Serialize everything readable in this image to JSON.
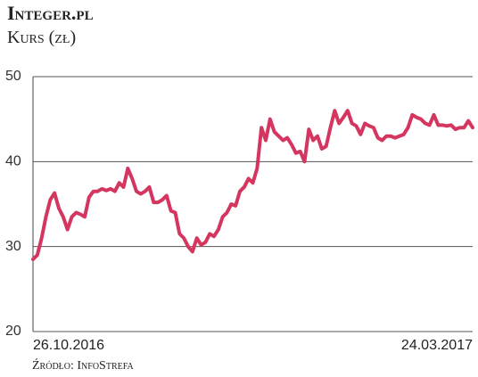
{
  "chart_data": {
    "type": "line",
    "title": "Integer.pl",
    "subtitle": "Kurs (zł)",
    "source": "Źródło: InfoStrefa",
    "categories": [
      "26.10.2016",
      null,
      null,
      null,
      null,
      null,
      null,
      null,
      null,
      null,
      null,
      null,
      null,
      null,
      null,
      null,
      null,
      null,
      null,
      null,
      null,
      null,
      null,
      null,
      null,
      null,
      null,
      null,
      null,
      null,
      null,
      null,
      null,
      null,
      null,
      null,
      null,
      null,
      null,
      null,
      null,
      null,
      null,
      null,
      null,
      null,
      null,
      null,
      null,
      null,
      null,
      null,
      null,
      null,
      null,
      null,
      null,
      null,
      null,
      null,
      null,
      null,
      null,
      null,
      null,
      null,
      null,
      null,
      null,
      null,
      null,
      null,
      null,
      null,
      null,
      null,
      null,
      null,
      null,
      null,
      null,
      null,
      null,
      null,
      null,
      null,
      null,
      null,
      null,
      null,
      null,
      null,
      null,
      null,
      null,
      null,
      null,
      null,
      null,
      null,
      null,
      null,
      "24.03.2017"
    ],
    "values": [
      28.5,
      29,
      31,
      33.5,
      35.5,
      36.3,
      34.5,
      33.5,
      32,
      33.5,
      34,
      33.8,
      33.5,
      35.8,
      36.5,
      36.5,
      36.8,
      36.6,
      36.8,
      36.5,
      37.5,
      37,
      39.2,
      38,
      36.5,
      36.2,
      36.5,
      37,
      35.2,
      35.2,
      35.5,
      36,
      34.2,
      34,
      31.5,
      31,
      30,
      29.4,
      31,
      30.2,
      30.5,
      31.5,
      31.2,
      32,
      33.5,
      34,
      35,
      34.8,
      36.5,
      37,
      38,
      37.5,
      39.2,
      44,
      42.5,
      45,
      43.5,
      43,
      42.5,
      42.8,
      42,
      41,
      41.2,
      40,
      43.8,
      42.5,
      43,
      41.5,
      41.8,
      44,
      46,
      44.5,
      45.2,
      46,
      44.5,
      44.2,
      43.2,
      44.5,
      44.2,
      44,
      42.8,
      42.5,
      43,
      43,
      42.8,
      43,
      43.2,
      44,
      45.5,
      45.2,
      45,
      44.5,
      44.3,
      45.5,
      44.3,
      44.3,
      44.2,
      44.3,
      43.8,
      44,
      44,
      44.8,
      44
    ],
    "color": "#d4365f",
    "ylim": [
      20,
      50
    ],
    "yticks": [
      20,
      30,
      40,
      50
    ],
    "grid": true
  }
}
